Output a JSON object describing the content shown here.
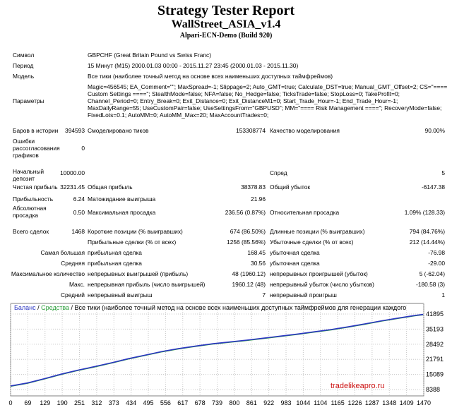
{
  "header": {
    "title": "Strategy Tester Report",
    "expert": "WallStreet_ASIA_v1.4",
    "server": "Alpari-ECN-Demo (Build 920)"
  },
  "symbol": {
    "label": "Символ",
    "value": "GBPCHF (Great Britain Pound vs Swiss Franc)"
  },
  "period": {
    "label": "Период",
    "value": "15 Минут (M15) 2000.01.03 00:00 - 2015.11.27 23:45 (2000.01.03 - 2015.11.30)"
  },
  "model": {
    "label": "Модель",
    "value": "Все тики (наиболее точный метод на основе всех наименьших доступных таймфреймов)"
  },
  "params": {
    "label": "Параметры",
    "lines": [
      "Magic=456545; EA_Comment=\"\"; MaxSpread=-1; Slippage=2; Auto_GMT=true; Calculate_DST=true; Manual_GMT_Offset=2; CS=\"====",
      "Custom Settings ====\"; StealthMode=false; NFA=false; No_Hedge=false; TicksTrade=false; StopLoss=0; TakeProfit=0;",
      "Channel_Period=0; Entry_Break=0; Exit_Distance=0; Exit_DistanceM1=0; Start_Trade_Hour=-1; End_Trade_Hour=-1;",
      "MaxDailyRange=55; UseCustomPair=false; UseSettingsFrom=\"GBPUSD\"; MM=\"==== Risk Management ====\"; RecoveryMode=false;",
      "FixedLots=0.1; AutoMM=0; AutoMM_Max=20; MaxAccountTrades=0;"
    ]
  },
  "bars": {
    "label": "Баров в истории",
    "value": "394593"
  },
  "ticks": {
    "label": "Смоделировано тиков",
    "value": "153308774"
  },
  "quality": {
    "label": "Качество моделирования",
    "value": "90.00%"
  },
  "errors": {
    "label": "Ошибки рассогласования графиков",
    "value": "0"
  },
  "deposit": {
    "label": "Начальный депозит",
    "value": "10000.00"
  },
  "spread": {
    "label": "Спред",
    "value": "5"
  },
  "net_profit": {
    "label": "Чистая прибыль",
    "value": "32231.45"
  },
  "gross_profit": {
    "label": "Общая прибыль",
    "value": "38378.83"
  },
  "gross_loss": {
    "label": "Общий убыток",
    "value": "-6147.38"
  },
  "profit_factor": {
    "label": "Прибыльность",
    "value": "6.24"
  },
  "expected_payoff": {
    "label": "Матожидание выигрыша",
    "value": "21.96"
  },
  "abs_dd": {
    "label": "Абсолютная просадка",
    "value": "0.50"
  },
  "max_dd": {
    "label": "Максимальная просадка",
    "value": "236.56 (0.87%)"
  },
  "rel_dd": {
    "label": "Относительная просадка",
    "value": "1.09% (128.33)"
  },
  "total_trades": {
    "label": "Всего сделок",
    "value": "1468"
  },
  "short_pos": {
    "label": "Короткие позиции (% выигравших)",
    "value": "674 (86.50%)"
  },
  "long_pos": {
    "label": "Длинные позиции (% выигравших)",
    "value": "794 (84.76%)"
  },
  "profit_trades": {
    "label": "Прибыльные сделки (% от всех)",
    "value": "1256 (85.56%)"
  },
  "loss_trades": {
    "label": "Убыточные сделки (% от всех)",
    "value": "212 (14.44%)"
  },
  "largest": {
    "label": "Самая большая",
    "p_label": "прибыльная сделка",
    "p_value": "168.45",
    "l_label": "убыточная сделка",
    "l_value": "-76.98"
  },
  "average": {
    "label": "Средняя",
    "p_label": "прибыльная сделка",
    "p_value": "30.56",
    "l_label": "убыточная сделка",
    "l_value": "-29.00"
  },
  "max_count": {
    "label": "Максимальное количество",
    "p_label": "непрерывных выигрышей (прибыль)",
    "p_value": "48 (1960.12)",
    "l_label": "непрерывных проигрышей (убыток)",
    "l_value": "5 (-62.04)"
  },
  "max_amount": {
    "label": "Макс.",
    "p_label": "непрерывная прибыль (число выигрышей)",
    "p_value": "1960.12 (48)",
    "l_label": "непрерывный убыток (число убытков)",
    "l_value": "-180.58 (3)"
  },
  "avg_consec": {
    "label": "Средний",
    "p_label": "непрерывный выигрыш",
    "p_value": "7",
    "l_label": "непрерывный проигрыш",
    "l_value": "1"
  },
  "chart_data": {
    "type": "line",
    "legend": {
      "balance": "Баланс",
      "sep1": " / ",
      "equity": "Средства",
      "sep2": " / ",
      "model": "Все тики (наиболее точный метод на основе всех наименьших доступных таймфреймов для генерации каждого"
    },
    "watermark": "tradelikeapro.ru",
    "colors": {
      "balance": "#2b36c2",
      "equity": "#2a9d3a",
      "bg": "#ffffff",
      "grid": "#c8c8c8"
    },
    "xlim": [
      0,
      1470
    ],
    "ylim": [
      8388,
      41895
    ],
    "x_ticks": [
      "0",
      "69",
      "129",
      "190",
      "251",
      "312",
      "373",
      "434",
      "495",
      "556",
      "617",
      "678",
      "739",
      "800",
      "861",
      "922",
      "983",
      "1044",
      "1104",
      "1165",
      "1226",
      "1287",
      "1348",
      "1409",
      "1470"
    ],
    "y_ticks": [
      "41895",
      "35193",
      "28492",
      "21791",
      "15089",
      "8388"
    ],
    "series": [
      {
        "x": [
          0,
          60,
          120,
          180,
          240,
          300,
          360,
          420,
          480,
          540,
          600,
          660,
          720,
          780,
          840,
          900,
          960,
          1020,
          1080,
          1140,
          1200,
          1260,
          1320,
          1380,
          1440,
          1468
        ],
        "y": [
          10000,
          11300,
          13200,
          15200,
          17000,
          18600,
          20300,
          22100,
          23700,
          25300,
          26600,
          27700,
          28700,
          29500,
          30300,
          31200,
          32100,
          33000,
          34000,
          35000,
          36200,
          37500,
          38900,
          40100,
          41300,
          41700
        ]
      }
    ]
  }
}
